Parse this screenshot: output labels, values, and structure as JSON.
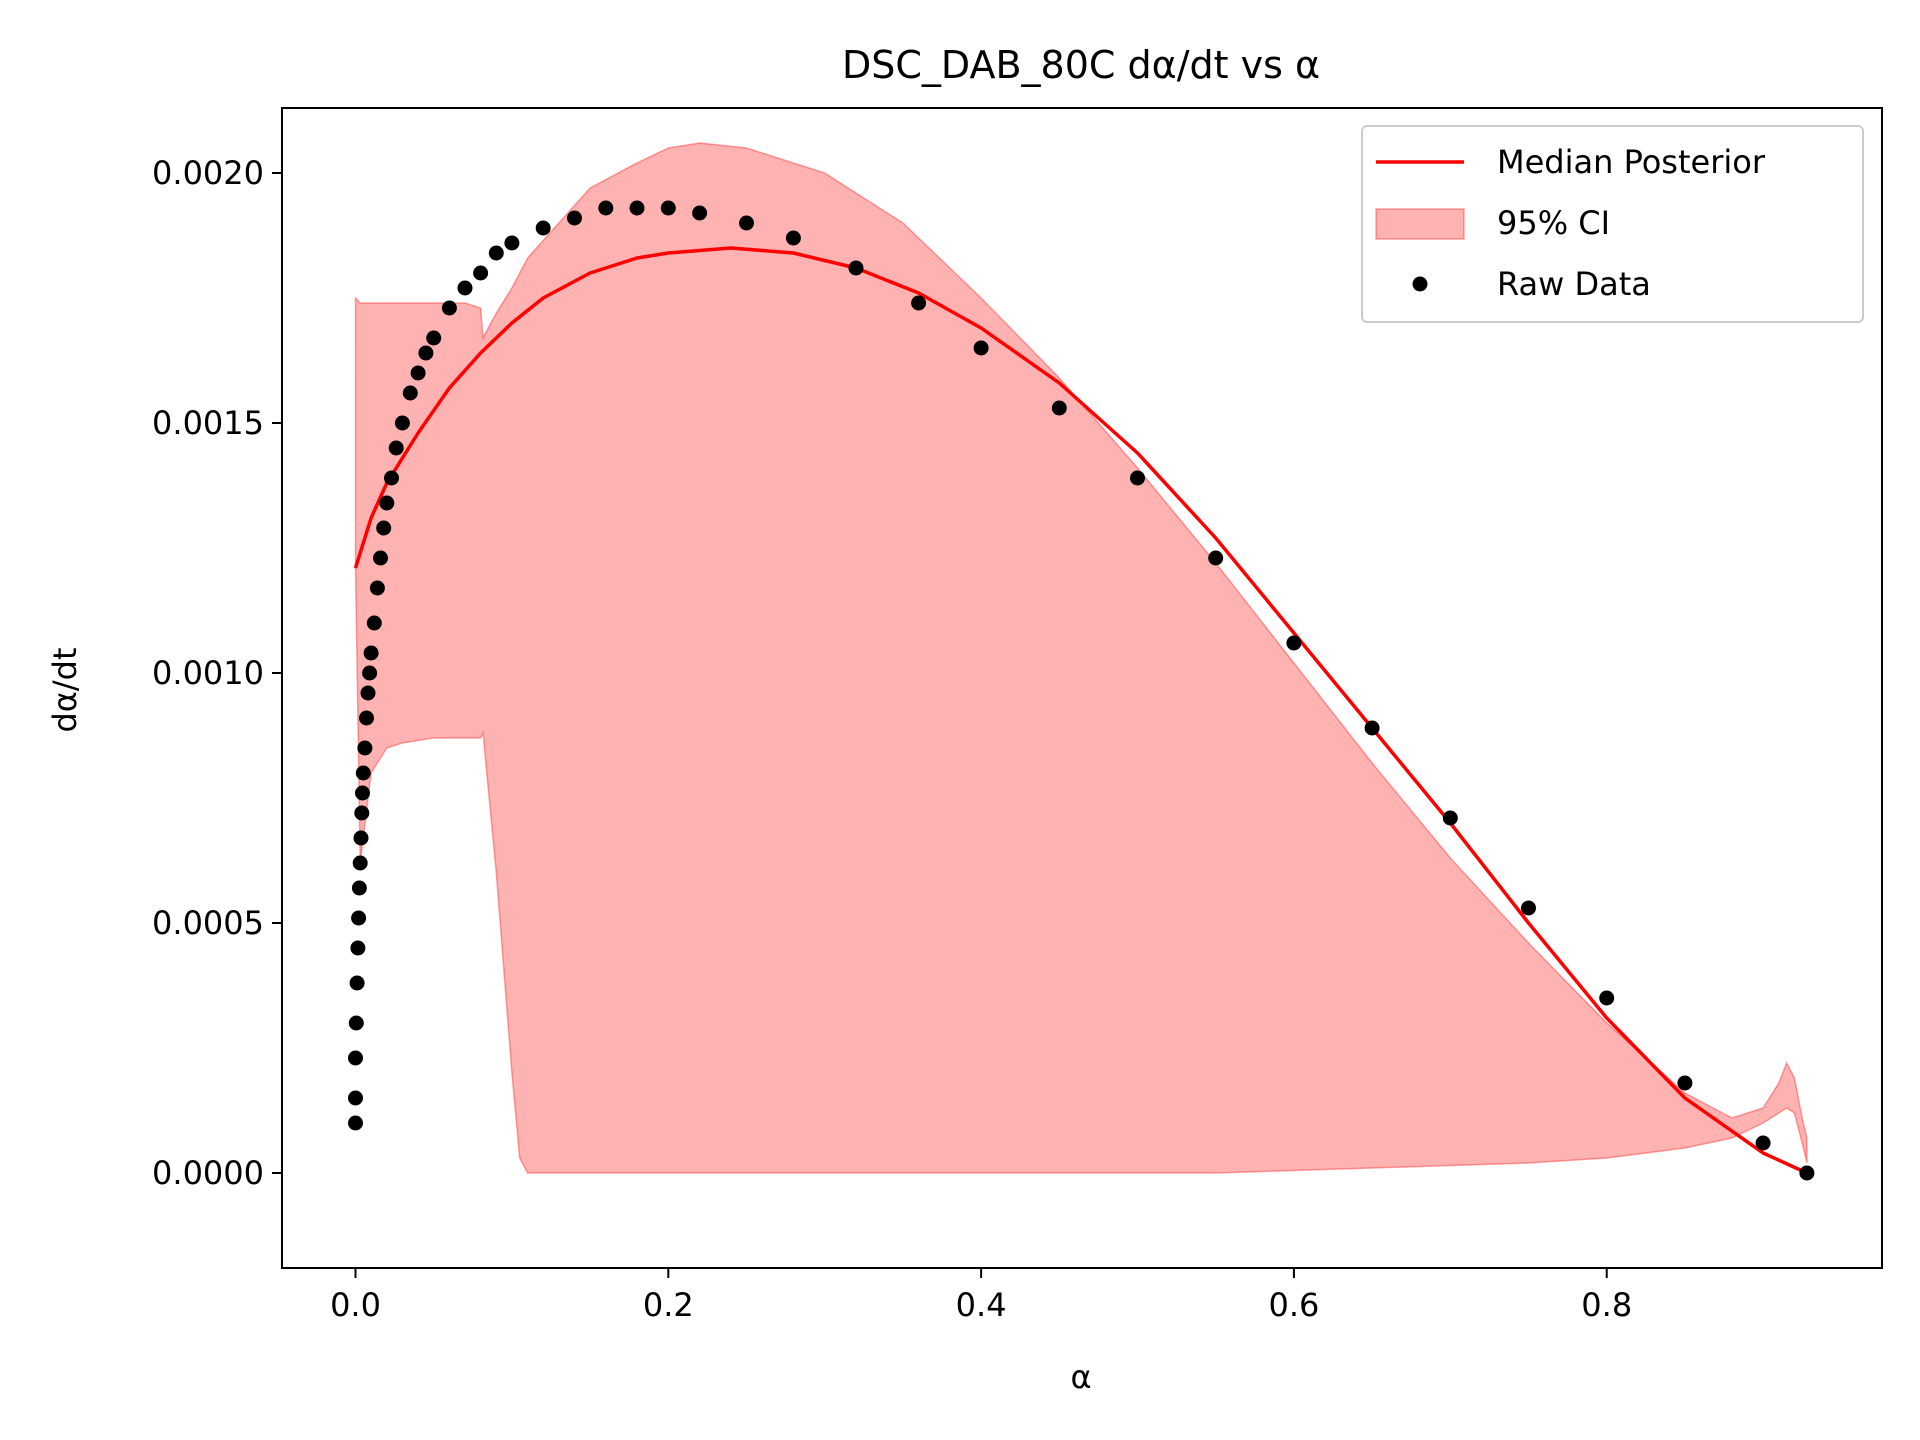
{
  "chart_data": {
    "type": "line",
    "title": "DSC_DAB_80C dα/dt vs α",
    "xlabel": "α",
    "ylabel": "dα/dt",
    "xlim": [
      -0.047,
      0.976
    ],
    "ylim": [
      -0.00019,
      0.00213
    ],
    "xticks": [
      {
        "value": 0.0,
        "label": "0.0"
      },
      {
        "value": 0.2,
        "label": "0.2"
      },
      {
        "value": 0.4,
        "label": "0.4"
      },
      {
        "value": 0.6,
        "label": "0.6"
      },
      {
        "value": 0.8,
        "label": "0.8"
      }
    ],
    "yticks": [
      {
        "value": 0.0,
        "label": "0.0000"
      },
      {
        "value": 0.0005,
        "label": "0.0005"
      },
      {
        "value": 0.001,
        "label": "0.0010"
      },
      {
        "value": 0.0015,
        "label": "0.0015"
      },
      {
        "value": 0.002,
        "label": "0.0020"
      }
    ],
    "grid": false,
    "legend_position": "top-right",
    "legend": [
      {
        "label": "Median Posterior",
        "kind": "line",
        "color": "#ff0000"
      },
      {
        "label": "95% CI",
        "kind": "band",
        "color": "#ff0000"
      },
      {
        "label": "Raw Data",
        "kind": "marker",
        "color": "#000000"
      }
    ],
    "series": [
      {
        "name": "Median Posterior",
        "kind": "line",
        "color": "#ff0000",
        "x": [
          0.0,
          0.01,
          0.02,
          0.04,
          0.06,
          0.08,
          0.1,
          0.12,
          0.15,
          0.18,
          0.2,
          0.24,
          0.28,
          0.32,
          0.36,
          0.4,
          0.45,
          0.5,
          0.55,
          0.6,
          0.65,
          0.7,
          0.75,
          0.8,
          0.85,
          0.9,
          0.928
        ],
        "y": [
          0.00121,
          0.00131,
          0.00138,
          0.00148,
          0.00157,
          0.00164,
          0.0017,
          0.00175,
          0.0018,
          0.00183,
          0.00184,
          0.00185,
          0.00184,
          0.00181,
          0.00176,
          0.00169,
          0.00158,
          0.00144,
          0.00127,
          0.00108,
          0.00089,
          0.0007,
          0.0005,
          0.00031,
          0.00015,
          4e-05,
          0.0
        ]
      },
      {
        "name": "95% CI",
        "kind": "band",
        "color": "#ff0000",
        "x": [
          0.0,
          0.003,
          0.01,
          0.02,
          0.03,
          0.05,
          0.07,
          0.08,
          0.0815,
          0.09,
          0.1,
          0.105,
          0.11,
          0.13,
          0.15,
          0.18,
          0.2,
          0.22,
          0.25,
          0.3,
          0.35,
          0.4,
          0.45,
          0.5,
          0.55,
          0.6,
          0.65,
          0.7,
          0.75,
          0.8,
          0.85,
          0.88,
          0.9,
          0.91,
          0.915,
          0.92,
          0.925,
          0.928
        ],
        "upper": [
          0.00175,
          0.00174,
          0.00174,
          0.00174,
          0.00174,
          0.00174,
          0.00174,
          0.00173,
          0.00167,
          0.00172,
          0.00177,
          0.0018,
          0.00183,
          0.0019,
          0.00197,
          0.00202,
          0.00205,
          0.00206,
          0.00205,
          0.002,
          0.0019,
          0.00175,
          0.00159,
          0.00141,
          0.00122,
          0.00102,
          0.00082,
          0.00063,
          0.00046,
          0.0003,
          0.00016,
          0.00011,
          0.00013,
          0.00018,
          0.00022,
          0.00019,
          0.00011,
          7e-05
        ],
        "lower": [
          0.00121,
          0.00062,
          0.0008,
          0.00085,
          0.00086,
          0.00087,
          0.00087,
          0.00087,
          0.00088,
          0.0006,
          0.0002,
          3e-05,
          0.0,
          0.0,
          0.0,
          0.0,
          0.0,
          0.0,
          0.0,
          0.0,
          0.0,
          0.0,
          0.0,
          0.0,
          0.0,
          5e-06,
          1e-05,
          1.5e-05,
          2e-05,
          3e-05,
          5e-05,
          7e-05,
          0.0001,
          0.00012,
          0.00013,
          0.00012,
          6e-05,
          2e-05
        ]
      },
      {
        "name": "Raw Data",
        "kind": "scatter",
        "color": "#000000",
        "x": [
          0.0,
          0.0,
          0.0,
          0.0005,
          0.001,
          0.0015,
          0.002,
          0.0025,
          0.003,
          0.0035,
          0.004,
          0.0045,
          0.005,
          0.006,
          0.007,
          0.008,
          0.009,
          0.01,
          0.012,
          0.014,
          0.016,
          0.018,
          0.02,
          0.023,
          0.026,
          0.03,
          0.035,
          0.04,
          0.045,
          0.05,
          0.06,
          0.07,
          0.08,
          0.09,
          0.1,
          0.12,
          0.14,
          0.16,
          0.18,
          0.2,
          0.22,
          0.25,
          0.28,
          0.32,
          0.36,
          0.4,
          0.45,
          0.5,
          0.55,
          0.6,
          0.65,
          0.7,
          0.75,
          0.8,
          0.85,
          0.9,
          0.928
        ],
        "y": [
          0.0001,
          0.00015,
          0.00023,
          0.0003,
          0.00038,
          0.00045,
          0.00051,
          0.00057,
          0.00062,
          0.00067,
          0.00072,
          0.00076,
          0.0008,
          0.00085,
          0.00091,
          0.00096,
          0.001,
          0.00104,
          0.0011,
          0.00117,
          0.00123,
          0.00129,
          0.00134,
          0.00139,
          0.00145,
          0.0015,
          0.00156,
          0.0016,
          0.00164,
          0.00167,
          0.00173,
          0.00177,
          0.0018,
          0.00184,
          0.00186,
          0.00189,
          0.00191,
          0.00193,
          0.00193,
          0.00193,
          0.00192,
          0.0019,
          0.00187,
          0.00181,
          0.00174,
          0.00165,
          0.00153,
          0.00139,
          0.00123,
          0.00106,
          0.00089,
          0.00071,
          0.00053,
          0.00035,
          0.00018,
          6e-05,
          0.0
        ]
      }
    ]
  }
}
